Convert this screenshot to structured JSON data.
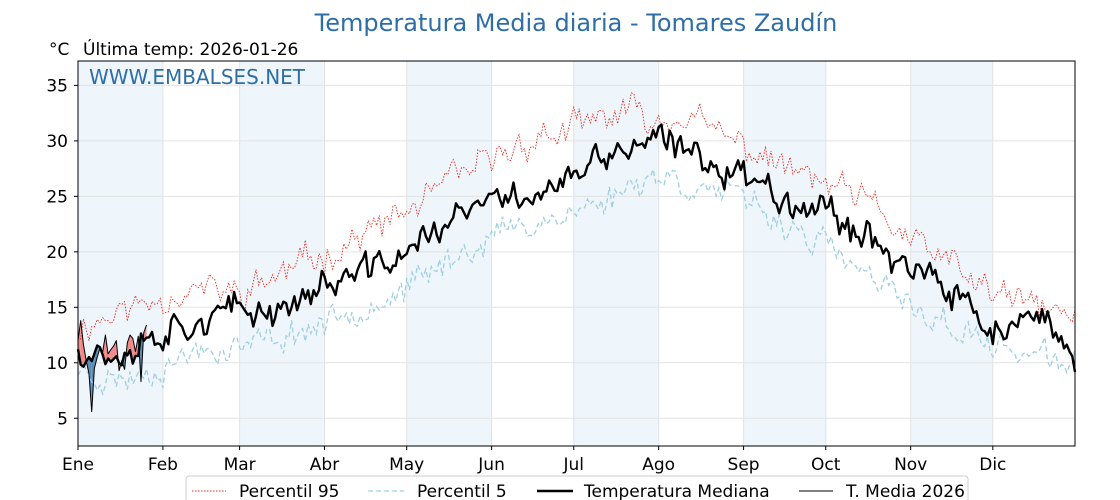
{
  "header": {
    "title": "Temperatura Media diaria - Tomares Zaudín",
    "unit": "°C",
    "last_temp": "Última temp: 2026-01-26",
    "watermark": "WWW.EMBALSES.NET"
  },
  "chart_data": {
    "type": "line",
    "title": "Temperatura Media diaria - Tomares Zaudín",
    "ylabel": "°C",
    "xlabel": "",
    "ylim": [
      2.5,
      37.2
    ],
    "yticks": [
      5,
      10,
      15,
      20,
      25,
      30,
      35
    ],
    "months": [
      "Ene",
      "Feb",
      "Mar",
      "Abr",
      "May",
      "Jun",
      "Jul",
      "Ago",
      "Sep",
      "Oct",
      "Nov",
      "Dic"
    ],
    "month_start_day": [
      1,
      32,
      60,
      91,
      121,
      152,
      182,
      213,
      244,
      274,
      305,
      335
    ],
    "x_range_days": [
      1,
      365
    ],
    "grid": true,
    "legend_position": "bottom",
    "colors": {
      "p95": "#e8281e",
      "p5": "#9fcfe0",
      "median": "#000000",
      "current": "#000000",
      "fill_below": "#5b8db5",
      "fill_above": "#f08a8a",
      "band": "#eef5fb",
      "title": "#2e6ea6"
    },
    "series": [
      {
        "name": "Percentil 95",
        "style": "dotted-red",
        "key_days": [
          1,
          15,
          32,
          45,
          60,
          75,
          91,
          105,
          121,
          135,
          152,
          165,
          182,
          197,
          205,
          213,
          222,
          230,
          244,
          260,
          274,
          290,
          305,
          320,
          335,
          350,
          365
        ],
        "values": [
          13.2,
          14.5,
          16.0,
          16.7,
          16.2,
          18.0,
          19.8,
          21.5,
          23.5,
          26.0,
          28.2,
          30.0,
          31.0,
          32.4,
          32.6,
          31.5,
          32.6,
          31.2,
          29.5,
          27.5,
          26.0,
          24.3,
          21.0,
          18.8,
          16.2,
          15.2,
          14.0
        ]
      },
      {
        "name": "Percentil 5",
        "style": "dashed-lightblue",
        "key_days": [
          1,
          15,
          32,
          45,
          60,
          75,
          91,
          105,
          121,
          135,
          152,
          165,
          182,
          197,
          205,
          213,
          222,
          230,
          244,
          260,
          274,
          290,
          305,
          320,
          335,
          350,
          365
        ],
        "values": [
          9.5,
          8.4,
          9.7,
          11.2,
          11.5,
          12.3,
          13.6,
          15.2,
          16.5,
          19.0,
          21.5,
          22.5,
          23.5,
          25.0,
          26.5,
          27.0,
          26.2,
          25.8,
          24.5,
          22.5,
          20.5,
          17.5,
          15.0,
          13.2,
          11.5,
          10.8,
          9.5
        ]
      },
      {
        "name": "Temperatura Mediana",
        "style": "thick-black",
        "key_days": [
          1,
          15,
          32,
          45,
          60,
          75,
          91,
          105,
          121,
          135,
          152,
          165,
          182,
          197,
          205,
          213,
          222,
          230,
          244,
          260,
          274,
          290,
          305,
          320,
          335,
          350,
          365
        ],
        "values": [
          11.5,
          10.8,
          13.0,
          14.0,
          14.5,
          15.0,
          17.0,
          18.0,
          20.0,
          22.5,
          24.5,
          25.2,
          26.5,
          29.0,
          29.5,
          29.8,
          29.0,
          28.5,
          27.0,
          25.0,
          24.0,
          21.5,
          18.5,
          16.0,
          13.0,
          13.5,
          11.0
        ]
      },
      {
        "name": "T. Media 2026",
        "style": "thin-black",
        "days": [
          1,
          2,
          3,
          4,
          5,
          6,
          7,
          8,
          9,
          10,
          11,
          12,
          13,
          14,
          15,
          16,
          17,
          18,
          19,
          20,
          21,
          22,
          23,
          24,
          25,
          26
        ],
        "values": [
          12.0,
          13.8,
          11.6,
          10.2,
          9.0,
          5.6,
          9.5,
          10.5,
          11.3,
          11.0,
          12.5,
          10.8,
          11.2,
          11.5,
          12.0,
          9.3,
          10.2,
          9.4,
          11.8,
          12.5,
          12.2,
          11.0,
          12.4,
          8.3,
          12.7,
          13.4
        ]
      }
    ]
  },
  "legend": {
    "items": [
      "Percentil 95",
      "Percentil 5",
      "Temperatura Mediana",
      "T. Media 2026"
    ]
  }
}
